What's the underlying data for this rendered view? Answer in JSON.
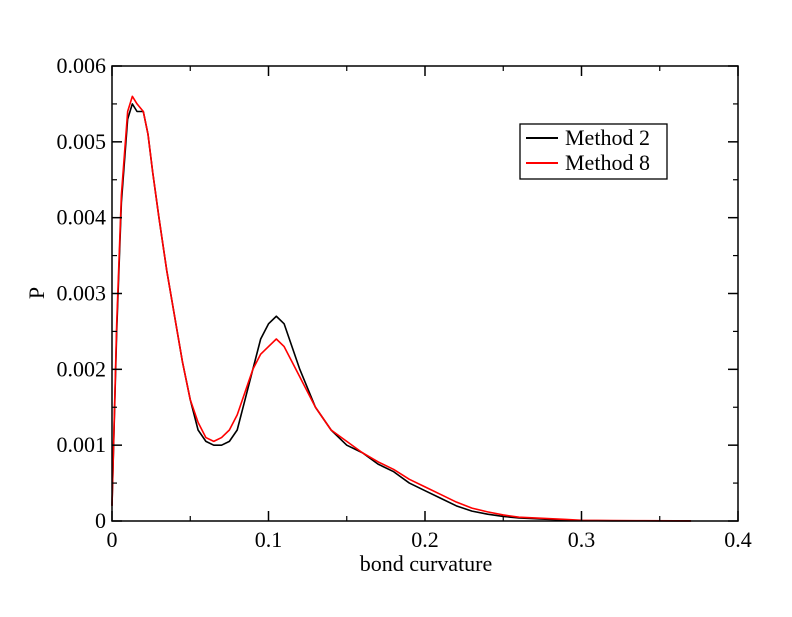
{
  "chart_data": {
    "type": "line",
    "title": "",
    "xlabel": "bond curvature",
    "ylabel": "P",
    "xlim": [
      0,
      0.4
    ],
    "ylim": [
      0,
      0.006
    ],
    "x_ticks": [
      "0",
      "0.1",
      "0.2",
      "0.3",
      "0.4"
    ],
    "y_ticks": [
      "0",
      "0.001",
      "0.002",
      "0.003",
      "0.004",
      "0.005",
      "0.006"
    ],
    "grid": false,
    "legend_position": "top-right",
    "series": [
      {
        "name": "Method 2",
        "color": "#000000",
        "x": [
          0,
          0.003,
          0.006,
          0.01,
          0.013,
          0.016,
          0.02,
          0.023,
          0.026,
          0.03,
          0.035,
          0.04,
          0.045,
          0.05,
          0.055,
          0.06,
          0.065,
          0.07,
          0.075,
          0.08,
          0.085,
          0.09,
          0.095,
          0.1,
          0.105,
          0.11,
          0.115,
          0.12,
          0.13,
          0.14,
          0.15,
          0.16,
          0.17,
          0.18,
          0.19,
          0.2,
          0.21,
          0.22,
          0.23,
          0.24,
          0.25,
          0.26,
          0.27,
          0.28,
          0.29,
          0.3,
          0.32,
          0.34,
          0.36,
          0.37
        ],
        "y": [
          0.0002,
          0.0025,
          0.0042,
          0.0053,
          0.0055,
          0.0054,
          0.0054,
          0.0051,
          0.0046,
          0.004,
          0.0033,
          0.0027,
          0.0021,
          0.0016,
          0.0012,
          0.00105,
          0.001,
          0.001,
          0.00105,
          0.0012,
          0.0016,
          0.002,
          0.0024,
          0.0026,
          0.0027,
          0.0026,
          0.0023,
          0.002,
          0.0015,
          0.0012,
          0.001,
          0.0009,
          0.00075,
          0.00065,
          0.0005,
          0.0004,
          0.0003,
          0.0002,
          0.00013,
          9e-05,
          6e-05,
          4e-05,
          3e-05,
          2e-05,
          1e-05,
          5e-06,
          3e-06,
          2e-06,
          1e-06,
          5e-07
        ]
      },
      {
        "name": "Method 8",
        "color": "#ff0000",
        "x": [
          0,
          0.003,
          0.006,
          0.01,
          0.013,
          0.016,
          0.02,
          0.023,
          0.026,
          0.03,
          0.035,
          0.04,
          0.045,
          0.05,
          0.055,
          0.06,
          0.065,
          0.07,
          0.075,
          0.08,
          0.085,
          0.09,
          0.095,
          0.1,
          0.105,
          0.11,
          0.115,
          0.12,
          0.13,
          0.14,
          0.15,
          0.16,
          0.17,
          0.18,
          0.19,
          0.2,
          0.21,
          0.22,
          0.23,
          0.24,
          0.25,
          0.26,
          0.27,
          0.28,
          0.29,
          0.3,
          0.32,
          0.34,
          0.36,
          0.37
        ],
        "y": [
          0.0002,
          0.0026,
          0.0043,
          0.0054,
          0.0056,
          0.0055,
          0.0054,
          0.0051,
          0.0046,
          0.004,
          0.0033,
          0.0027,
          0.0021,
          0.0016,
          0.0013,
          0.0011,
          0.00105,
          0.0011,
          0.0012,
          0.0014,
          0.0017,
          0.002,
          0.0022,
          0.0023,
          0.0024,
          0.0023,
          0.0021,
          0.0019,
          0.0015,
          0.0012,
          0.00105,
          0.0009,
          0.00078,
          0.00068,
          0.00055,
          0.00045,
          0.00035,
          0.00025,
          0.00017,
          0.00012,
          8e-05,
          5e-05,
          4e-05,
          3e-05,
          2e-05,
          1e-05,
          6e-06,
          4e-06,
          2e-06,
          1e-06
        ]
      }
    ]
  }
}
